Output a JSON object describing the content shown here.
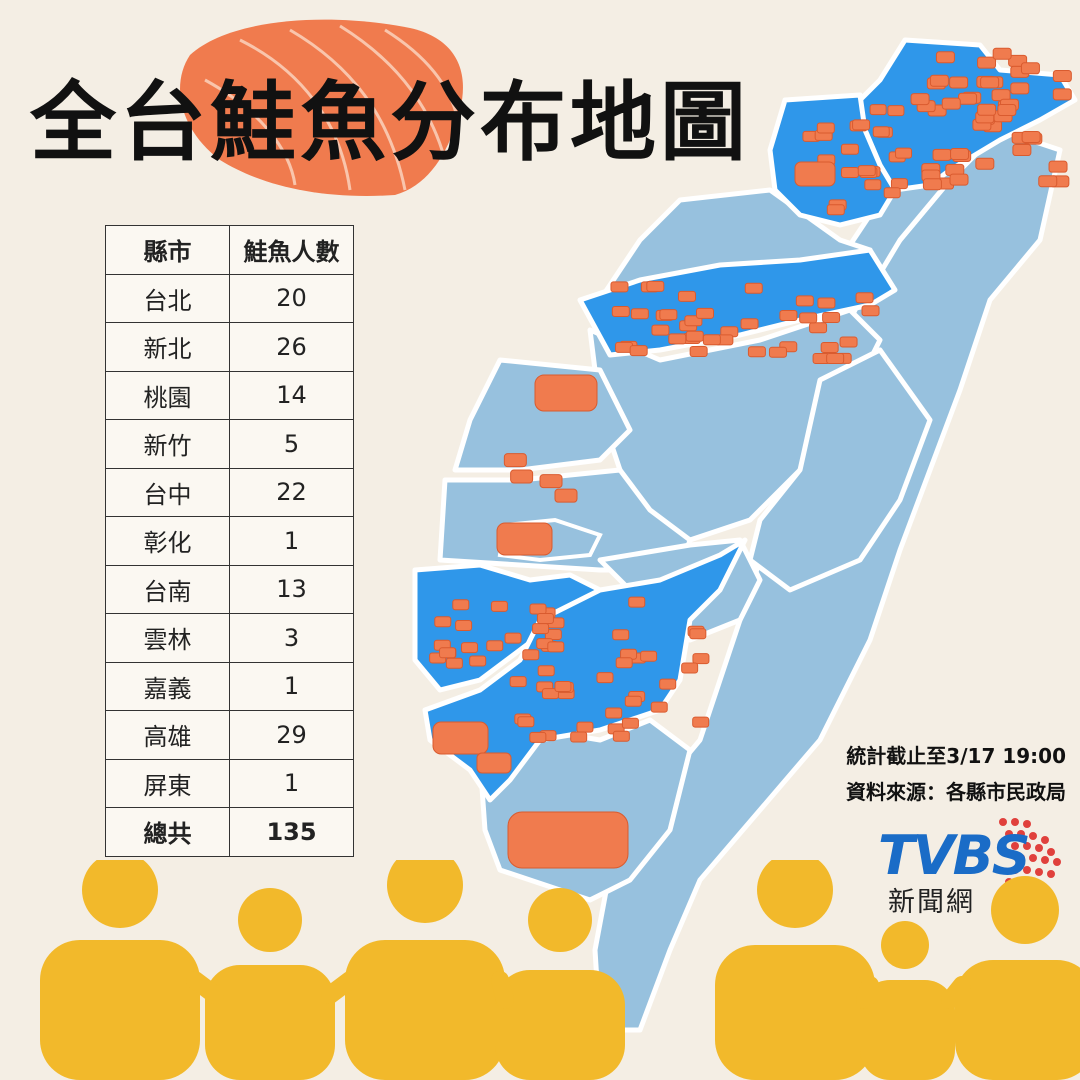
{
  "title": "全台鮭魚分布地圖",
  "chart_data": {
    "type": "table",
    "columns": [
      "縣市",
      "鮭魚人數"
    ],
    "rows": [
      {
        "county": "台北",
        "count": "20"
      },
      {
        "county": "新北",
        "count": "26"
      },
      {
        "county": "桃園",
        "count": "14"
      },
      {
        "county": "新竹",
        "count": "5"
      },
      {
        "county": "台中",
        "count": "22"
      },
      {
        "county": "彰化",
        "count": "1"
      },
      {
        "county": "台南",
        "count": "13"
      },
      {
        "county": "雲林",
        "count": "3"
      },
      {
        "county": "嘉義",
        "count": "1"
      },
      {
        "county": "高雄",
        "count": "29"
      },
      {
        "county": "屏東",
        "count": "1"
      }
    ],
    "total": {
      "label": "總共",
      "count": "135"
    }
  },
  "notes": {
    "cutoff": "統計截止至3/17  19:00",
    "source": "資料來源：各縣市民政局"
  },
  "logo": {
    "text": "TVBS",
    "sub": "新聞網"
  },
  "colors": {
    "background": "#f4eee4",
    "map_base": "#97c1de",
    "map_highlight": "#2f97ea",
    "salmon": "#f07b4e",
    "people": "#f2b92b",
    "logo_blue": "#1a6cc7",
    "logo_red": "#e0403c"
  }
}
